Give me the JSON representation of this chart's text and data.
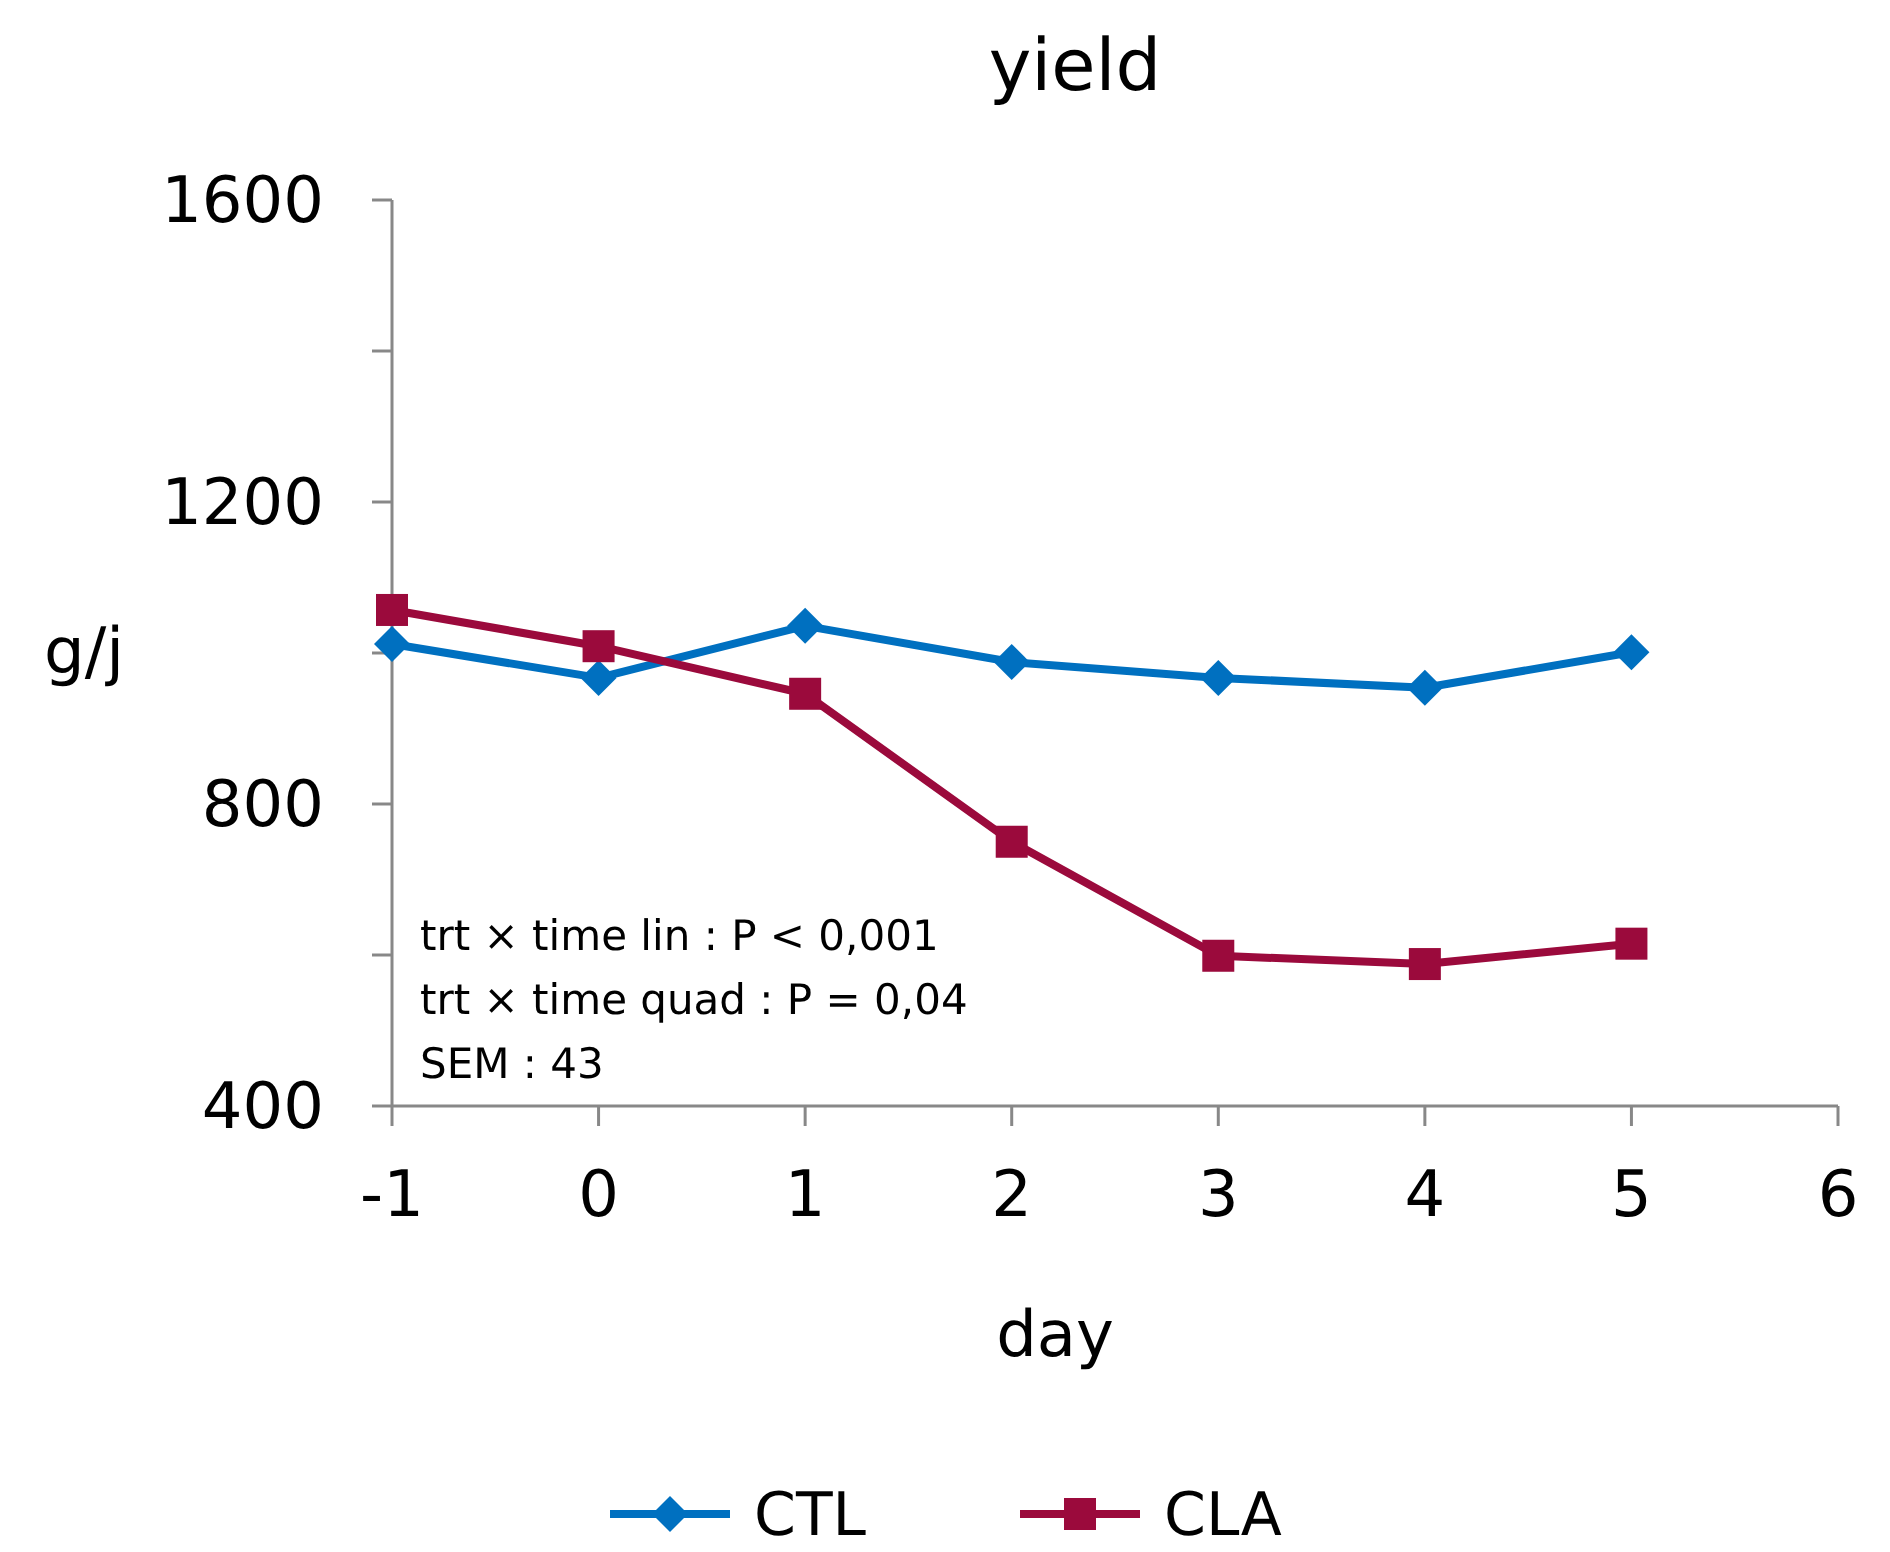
{
  "chart_data": {
    "type": "line",
    "title": "yield",
    "xlabel": "day",
    "ylabel": "g/j",
    "x": [
      -1,
      0,
      1,
      2,
      3,
      4,
      5
    ],
    "series": [
      {
        "name": "CTL",
        "color": "#0070c0",
        "marker": "diamond",
        "values": [
          1012,
          967,
          1036,
          988,
          967,
          954,
          1001
        ]
      },
      {
        "name": "CLA",
        "color": "#9b0a3c",
        "marker": "square",
        "values": [
          1057,
          1009,
          946,
          750,
          599,
          588,
          615
        ]
      }
    ],
    "xlim": [
      -1,
      6
    ],
    "xticks": [
      {
        "value": -1,
        "label": "-1"
      },
      0,
      1,
      2,
      3,
      4,
      5,
      6
    ],
    "ylim": [
      400,
      1600
    ],
    "yticks": [
      400,
      {
        "value": 600,
        "label": null
      },
      800,
      {
        "value": 1000,
        "label": null
      },
      1200,
      {
        "value": 1400,
        "label": null
      },
      1600
    ],
    "annotations": [
      "trt × time lin : P < 0,001",
      "trt × time quad : P = 0,04",
      "SEM : 43"
    ],
    "grid": false,
    "legend": "bottom",
    "line_style": "solid"
  }
}
